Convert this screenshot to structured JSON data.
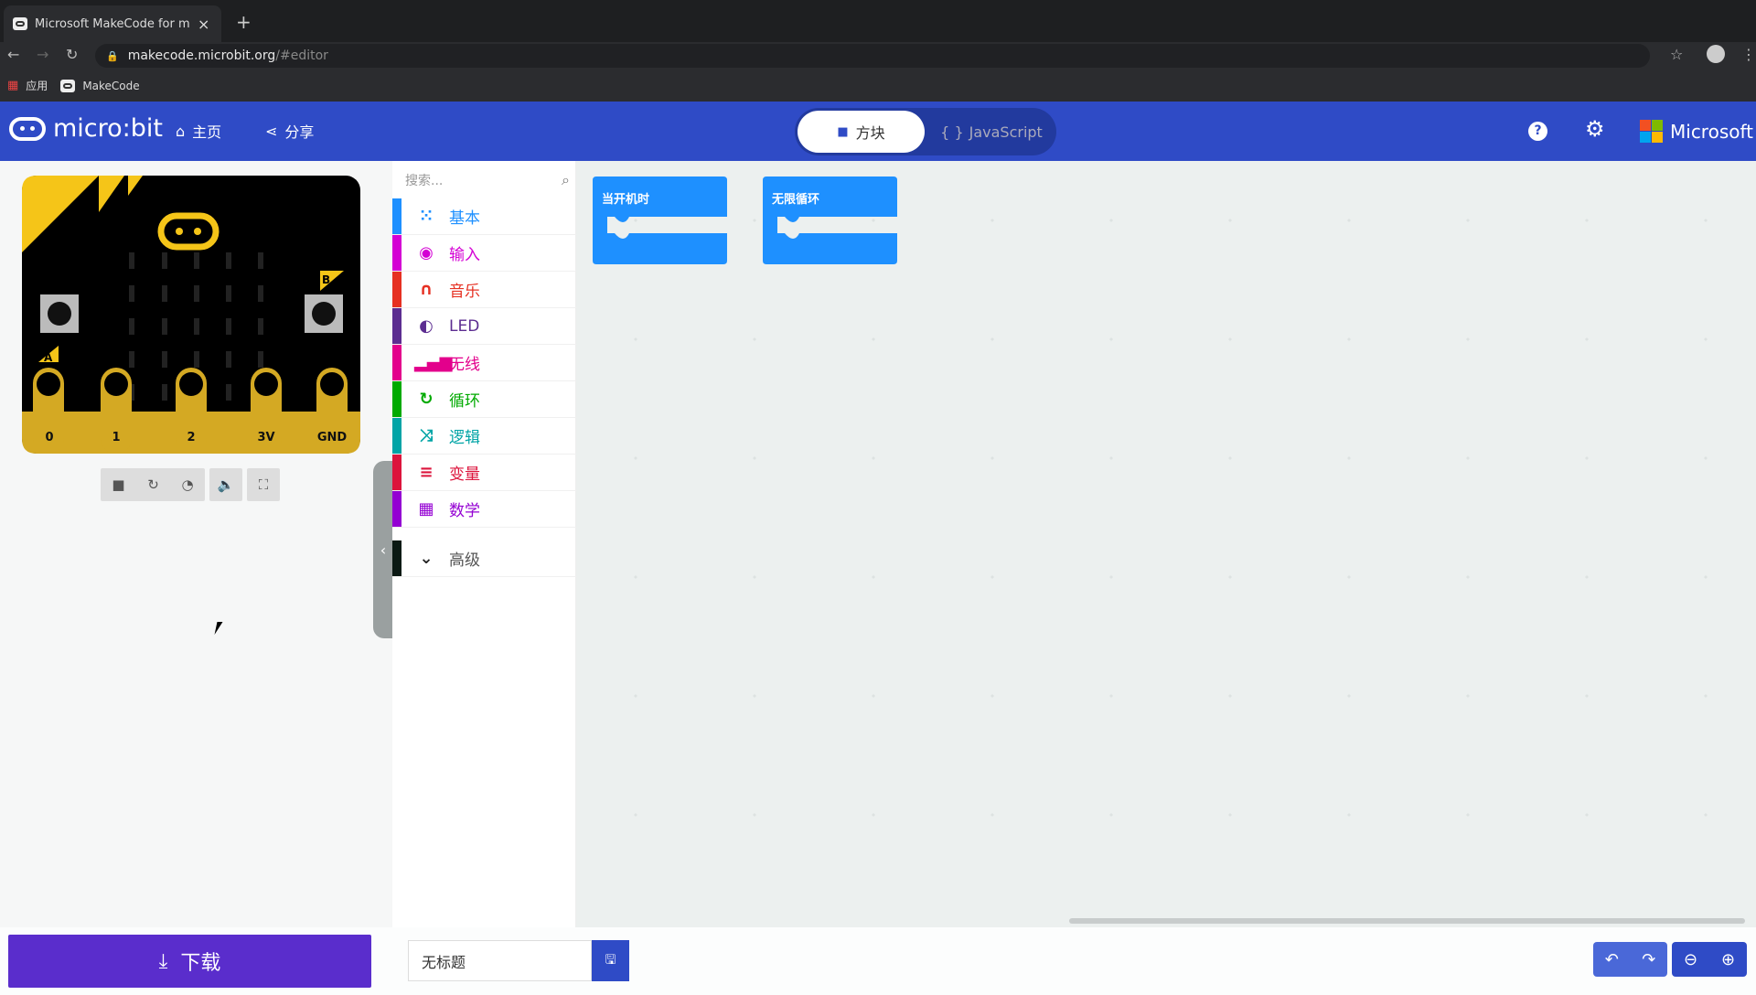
{
  "browser": {
    "tab_title": "Microsoft MakeCode for micro:bit",
    "new_tab": "+",
    "close": "×",
    "url_host": "makecode.microbit.org",
    "url_path": "/#editor",
    "bookmarks": [
      {
        "label": "应用"
      },
      {
        "label": "MakeCode"
      }
    ]
  },
  "header": {
    "logo": "micro:bit",
    "home": "主页",
    "share": "分享",
    "mode_blocks": "方块",
    "mode_js": "JavaScript",
    "brand": "Microsoft"
  },
  "simulator": {
    "pins": [
      "0",
      "1",
      "2",
      "3V",
      "GND"
    ],
    "button_a": "A",
    "button_b": "B",
    "controls": [
      "stop",
      "restart",
      "slow-mo",
      "mute",
      "fullscreen"
    ]
  },
  "toolbox": {
    "search_placeholder": "搜索...",
    "categories": [
      {
        "label": "基本",
        "color": "#1e90ff",
        "icon": "grid"
      },
      {
        "label": "输入",
        "color": "#d400d4",
        "icon": "target"
      },
      {
        "label": "音乐",
        "color": "#e63022",
        "icon": "headphones"
      },
      {
        "label": "LED",
        "color": "#5c2d91",
        "icon": "toggle"
      },
      {
        "label": "无线",
        "color": "#e3008c",
        "icon": "signal"
      },
      {
        "label": "循环",
        "color": "#00aa00",
        "icon": "refresh"
      },
      {
        "label": "逻辑",
        "color": "#00a4a6",
        "icon": "shuffle"
      },
      {
        "label": "变量",
        "color": "#dc143c",
        "icon": "list"
      },
      {
        "label": "数学",
        "color": "#9400d3",
        "icon": "calculator"
      }
    ],
    "advanced": "高级"
  },
  "workspace": {
    "blocks": [
      {
        "label": "当开机时"
      },
      {
        "label": "无限循环"
      }
    ],
    "block_color": "#1e90ff"
  },
  "footer": {
    "download": "下载",
    "project_name": "无标题"
  }
}
